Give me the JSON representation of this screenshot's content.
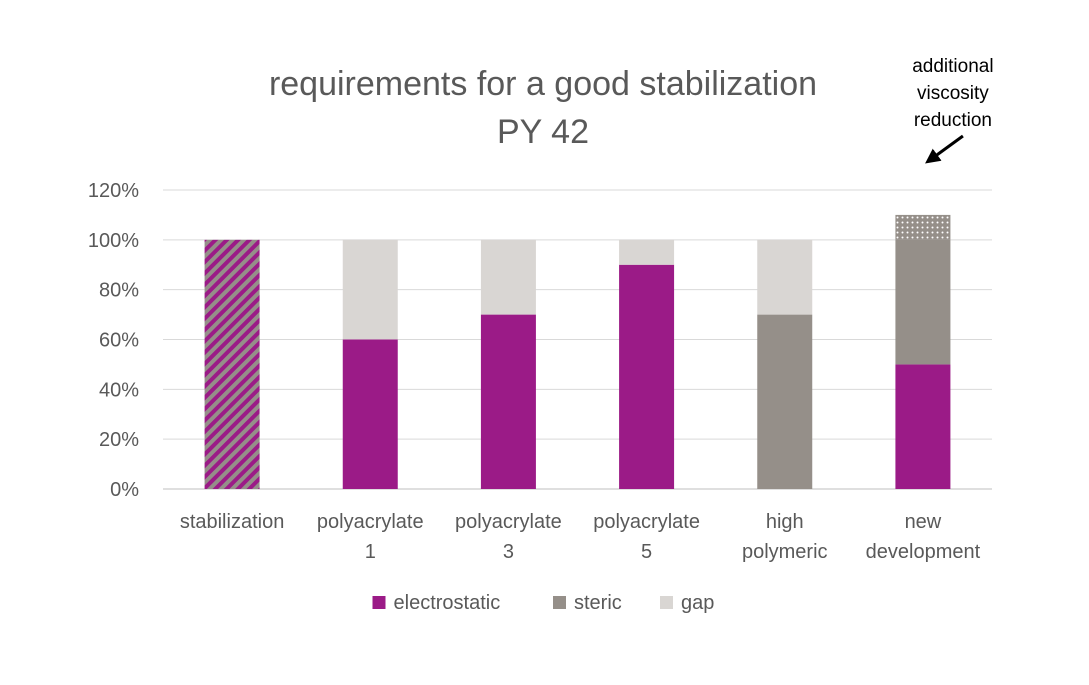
{
  "chart_data": {
    "type": "bar",
    "stacked": true,
    "title": "requirements for a good stabilization",
    "subtitle": "PY 42",
    "categories": [
      [
        "stabilization"
      ],
      [
        "polyacrylate",
        "1"
      ],
      [
        "polyacrylate",
        "3"
      ],
      [
        "polyacrylate",
        "5"
      ],
      [
        "high",
        "polymeric"
      ],
      [
        "new",
        "development"
      ]
    ],
    "series": [
      {
        "name": "electrostatic",
        "color": "#9b1b87",
        "values": [
          0,
          60,
          70,
          90,
          0,
          50
        ]
      },
      {
        "name": "steric",
        "color": "#958f89",
        "values": [
          0,
          0,
          0,
          0,
          70,
          50
        ]
      },
      {
        "name": "gap",
        "color": "#d9d6d3",
        "values": [
          0,
          40,
          30,
          10,
          30,
          0
        ]
      }
    ],
    "extra_bars": {
      "stabilization_total": {
        "category_index": 0,
        "value": 100,
        "pattern": "diagonal-stripes",
        "colors": [
          "#9b1b87",
          "#958f89"
        ]
      },
      "additional_reduction": {
        "category_index": 5,
        "from": 100,
        "to": 110,
        "pattern": "dots",
        "color": "#958f89"
      }
    },
    "ylim": [
      0,
      120
    ],
    "ytick_step": 20,
    "ytick_format": "percent",
    "grid": true,
    "legend_position": "bottom",
    "annotation": {
      "lines": [
        "additional",
        "viscosity",
        "reduction"
      ],
      "arrow": true,
      "target_category_index": 5
    }
  }
}
